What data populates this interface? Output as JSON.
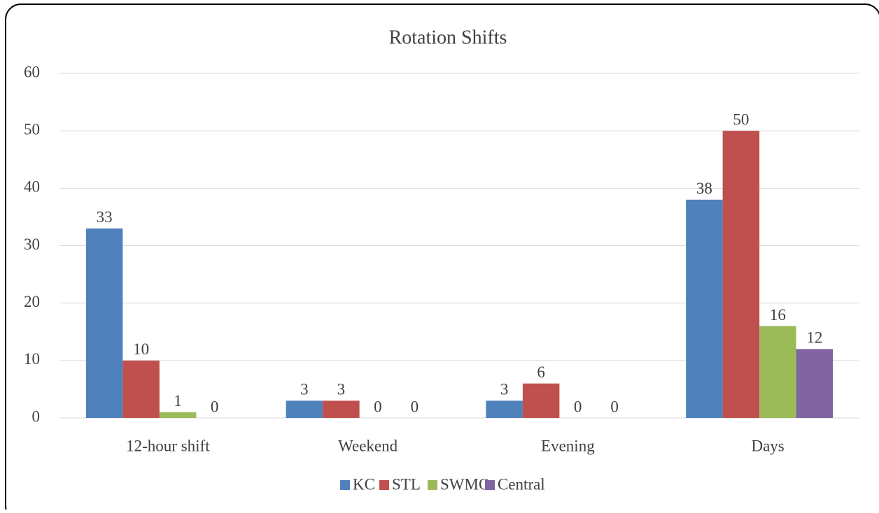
{
  "chart_data": {
    "type": "bar",
    "title": "Rotation Shifts",
    "categories": [
      "12-hour shift",
      "Weekend",
      "Evening",
      "Days"
    ],
    "series": [
      {
        "name": "KC",
        "color": "#4f81bd",
        "values": [
          33,
          3,
          3,
          38
        ]
      },
      {
        "name": "STL",
        "color": "#c0504d",
        "values": [
          10,
          3,
          6,
          50
        ]
      },
      {
        "name": "SWMO",
        "color": "#9bbb59",
        "values": [
          1,
          0,
          0,
          16
        ]
      },
      {
        "name": "Central",
        "color": "#8064a2",
        "values": [
          0,
          0,
          0,
          12
        ]
      }
    ],
    "ylim": [
      0,
      60
    ],
    "yticks": [
      0,
      10,
      20,
      30,
      40,
      50,
      60
    ],
    "grid": true,
    "legend": "bottom"
  }
}
